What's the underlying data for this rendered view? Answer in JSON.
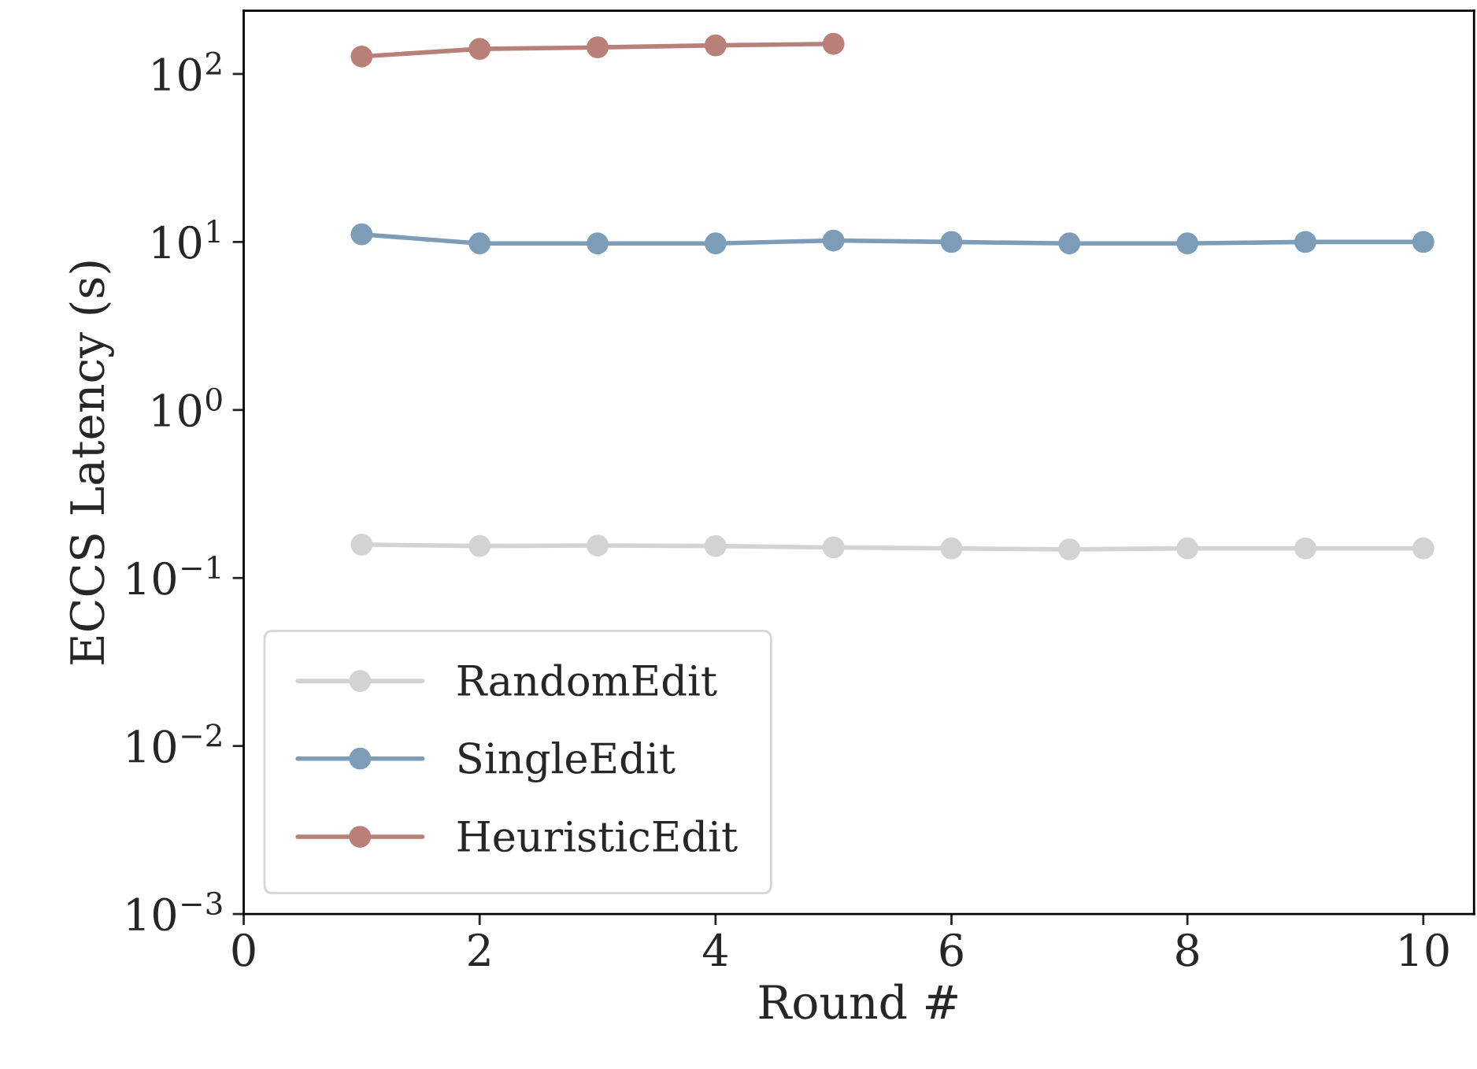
{
  "chart_data": {
    "type": "line",
    "xlabel": "Round #",
    "ylabel": "ECCS Latency (s)",
    "log": "y",
    "xlim": [
      0,
      10.43
    ],
    "ylim": [
      0.001,
      238
    ],
    "xticks": [
      0,
      2,
      4,
      6,
      8,
      10
    ],
    "yticks": [
      {
        "value": 0.001,
        "label": "10$^{−3}$"
      },
      {
        "value": 0.01,
        "label": "10$^{−2}$"
      },
      {
        "value": 0.1,
        "label": "10$^{−1}$"
      },
      {
        "value": 1,
        "label": "10$^{0}$"
      },
      {
        "value": 10,
        "label": "10$^{1}$"
      },
      {
        "value": 100,
        "label": "10$^{2}$"
      }
    ],
    "x": [
      1,
      2,
      3,
      4,
      5,
      6,
      7,
      8,
      9,
      10
    ],
    "marker": "circle",
    "line_style": "solid",
    "grid": false,
    "legend": "bottom left",
    "series": [
      {
        "name": "RandomEdit",
        "color": "#d3d3d3",
        "values": [
          0.158,
          0.155,
          0.156,
          0.155,
          0.152,
          0.15,
          0.148,
          0.15,
          0.15,
          0.15
        ]
      },
      {
        "name": "SingleEdit",
        "color": "#7d9cb8",
        "values": [
          11.1,
          9.8,
          9.8,
          9.8,
          10.2,
          10,
          9.8,
          9.8,
          10,
          10
        ]
      },
      {
        "name": "HeuristicEdit",
        "color": "#b88078",
        "values": [
          127,
          141,
          144,
          148,
          151,
          null,
          null,
          null,
          null,
          null
        ]
      }
    ]
  }
}
